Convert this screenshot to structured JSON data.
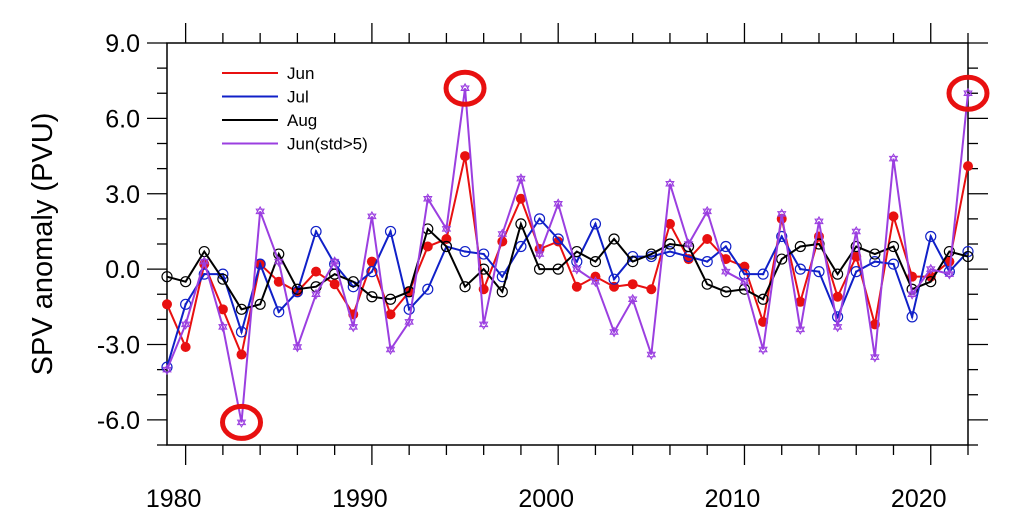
{
  "chart_data": {
    "type": "line",
    "title": "",
    "xlabel": "",
    "ylabel": "SPV anomaly (PVU)",
    "xlim": [
      1979,
      2022
    ],
    "ylim": [
      -7,
      9
    ],
    "x_ticks": [
      1980,
      1990,
      2000,
      2010,
      2020
    ],
    "y_ticks": [
      "9.0",
      "6.0",
      "3.0",
      "0.0",
      "-3.0",
      "-6.0"
    ],
    "y_tick_values": [
      9,
      6,
      3,
      0,
      -3,
      -6
    ],
    "grid": false,
    "legend_position": "top-left",
    "x": [
      1979,
      1980,
      1981,
      1982,
      1983,
      1984,
      1985,
      1986,
      1987,
      1988,
      1989,
      1990,
      1991,
      1992,
      1993,
      1994,
      1995,
      1996,
      1997,
      1998,
      1999,
      2000,
      2001,
      2002,
      2003,
      2004,
      2005,
      2006,
      2007,
      2008,
      2009,
      2010,
      2011,
      2012,
      2013,
      2014,
      2015,
      2016,
      2017,
      2018,
      2019,
      2020,
      2021,
      2022
    ],
    "series": [
      {
        "name": "Jun",
        "color": "#e81010",
        "marker": "filled-circle",
        "values": [
          -1.4,
          -3.1,
          0.2,
          -1.6,
          -3.4,
          0.2,
          -0.5,
          -0.9,
          -0.1,
          -0.6,
          -1.8,
          0.3,
          -1.8,
          -0.9,
          0.9,
          1.2,
          4.5,
          -0.8,
          1.1,
          2.8,
          0.8,
          1.1,
          -0.7,
          -0.3,
          -0.7,
          -0.6,
          -0.8,
          1.8,
          0.4,
          1.2,
          0.4,
          0.1,
          -2.1,
          2.0,
          -1.3,
          1.3,
          -1.1,
          0.5,
          -2.2,
          2.1,
          -0.3,
          -0.3,
          0.3,
          4.1
        ]
      },
      {
        "name": "Jul",
        "color": "#1020c8",
        "marker": "dotted-circle",
        "values": [
          -3.9,
          -1.4,
          -0.2,
          -0.2,
          -2.5,
          0.2,
          -1.7,
          -0.9,
          1.5,
          0.2,
          -0.7,
          -0.1,
          1.5,
          -1.6,
          -0.8,
          0.9,
          0.7,
          0.6,
          -0.3,
          0.9,
          2.0,
          1.2,
          0.3,
          1.8,
          -0.4,
          0.5,
          0.5,
          0.7,
          0.5,
          0.3,
          0.9,
          -0.2,
          -0.2,
          1.3,
          0.0,
          -0.1,
          -1.9,
          -0.1,
          0.3,
          0.2,
          -1.9,
          1.3,
          -0.1,
          0.7
        ]
      },
      {
        "name": "Aug",
        "color": "#000000",
        "marker": "open-circle",
        "values": [
          -0.3,
          -0.5,
          0.7,
          -0.4,
          -1.6,
          -1.4,
          0.6,
          -0.8,
          -0.7,
          -0.2,
          -0.5,
          -1.1,
          -1.2,
          -0.9,
          1.6,
          0.9,
          -0.7,
          0.0,
          -0.9,
          1.8,
          0.0,
          0.0,
          0.7,
          0.3,
          1.2,
          0.3,
          0.6,
          1.0,
          0.9,
          -0.6,
          -0.9,
          -0.8,
          -1.2,
          0.4,
          0.9,
          1.0,
          -0.2,
          0.9,
          0.6,
          0.9,
          -0.8,
          -0.5,
          0.7,
          0.5
        ]
      },
      {
        "name": "Jun(std>5)",
        "color": "#9b3fe0",
        "marker": "star",
        "values": [
          -4.0,
          -2.2,
          0.3,
          -2.3,
          -6.1,
          2.3,
          0.3,
          -3.1,
          -1.0,
          0.3,
          -2.3,
          2.1,
          -3.2,
          -2.1,
          2.8,
          1.6,
          7.2,
          -2.2,
          1.4,
          3.6,
          0.6,
          2.6,
          0.0,
          -0.5,
          -2.5,
          -1.2,
          -3.4,
          3.4,
          1.0,
          2.3,
          -0.1,
          -0.5,
          -3.2,
          2.2,
          -2.4,
          1.9,
          -2.3,
          1.5,
          -3.5,
          4.4,
          -1.0,
          0.0,
          -0.2,
          7.0
        ]
      }
    ],
    "annotations": [
      {
        "type": "circle",
        "color": "#e81010",
        "x": 1983,
        "y": -6.1
      },
      {
        "type": "circle",
        "color": "#e81010",
        "x": 1995,
        "y": 7.2
      },
      {
        "type": "circle",
        "color": "#e81010",
        "x": 2022,
        "y": 7.0
      }
    ]
  }
}
